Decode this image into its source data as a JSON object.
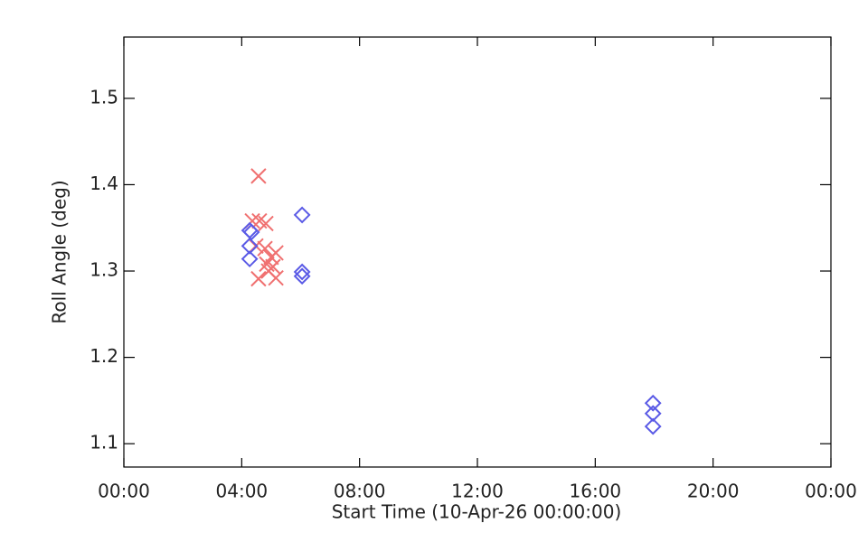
{
  "chart_data": {
    "type": "scatter",
    "xlabel": "Start Time (10-Apr-26 00:00:00)",
    "ylabel": "Roll Angle (deg)",
    "xlim": [
      0,
      24
    ],
    "xticks": [
      {
        "value": 0,
        "label": "00:00"
      },
      {
        "value": 4,
        "label": "04:00"
      },
      {
        "value": 8,
        "label": "08:00"
      },
      {
        "value": 12,
        "label": "12:00"
      },
      {
        "value": 16,
        "label": "16:00"
      },
      {
        "value": 20,
        "label": "20:00"
      },
      {
        "value": 24,
        "label": "00:00"
      }
    ],
    "ylim": [
      1.073,
      1.571
    ],
    "yticks": [
      1.1,
      1.2,
      1.3,
      1.4,
      1.5
    ],
    "series": [
      {
        "color": "#f07070",
        "marker": "x",
        "x": [
          4.57,
          4.36,
          4.6,
          4.82,
          4.48,
          4.79,
          5.0,
          5.16,
          4.85,
          5.06,
          4.57,
          5.16,
          4.91
        ],
        "values": [
          1.41,
          1.358,
          1.358,
          1.355,
          1.329,
          1.326,
          1.316,
          1.321,
          1.308,
          1.305,
          1.291,
          1.292,
          1.3
        ]
      },
      {
        "color": "#5a5ae6",
        "marker": "diamond",
        "x": [
          4.27,
          4.33,
          4.27,
          4.27,
          6.05,
          6.05,
          6.05,
          17.96,
          17.96,
          17.96
        ],
        "values": [
          1.347,
          1.345,
          1.329,
          1.314,
          1.365,
          1.299,
          1.294,
          1.147,
          1.135,
          1.12
        ]
      }
    ]
  }
}
